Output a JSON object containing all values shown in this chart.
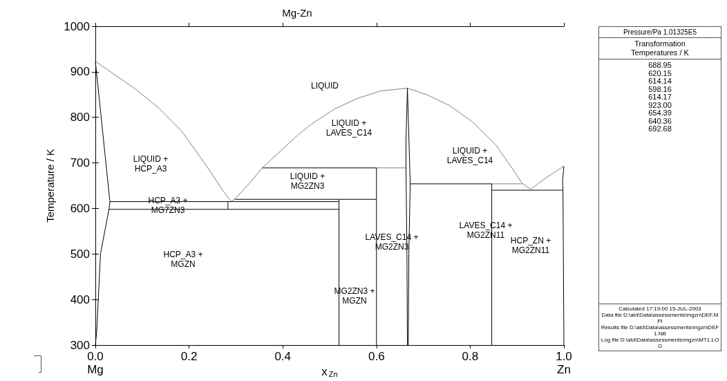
{
  "chart_data": [
    {
      "type": "line",
      "title": "Mg-Zn",
      "xlabel": "x$_{Zn}$",
      "ylabel": "Temperature / K",
      "marker": "none",
      "xlim": [
        0,
        1
      ],
      "ylim": [
        300,
        1000
      ],
      "xticks": [
        {
          "value": 0,
          "label": "0.0"
        },
        0.2,
        0.4,
        0.6,
        0.8,
        {
          "value": 1,
          "label": "1.0"
        }
      ],
      "yticks": [
        300,
        400,
        500,
        600,
        700,
        800,
        900,
        1000
      ],
      "series": [
        {
          "color": "#808080",
          "x": [
            0,
            0.087,
            0.136,
            0.184,
            0.234,
            0.273,
            0.29,
            0.298,
            0.332,
            0.357,
            0.431,
            0.461,
            0.51,
            0.56,
            0.609,
            0.666,
            0.707,
            0.756,
            0.805,
            0.855,
            0.889,
            0.911,
            0.929,
            0.963,
            0.997,
            1,
            null,
            0.6,
            0.663,
            null,
            0.846,
            0.911
          ],
          "values": [
            923,
            861,
            820,
            770,
            698,
            638,
            615,
            621,
            659,
            690,
            760,
            785,
            818,
            842,
            858,
            864,
            850,
            826,
            790,
            739,
            689,
            655,
            642,
            668,
            691,
            693,
            null,
            689,
            689,
            null,
            654,
            654
          ]
        },
        {
          "color": "#000000",
          "x": [
            0,
            0.031,
            0.029,
            0.022,
            0.011,
            0.003,
            0,
            null,
            0.666,
            0.663,
            0.663,
            0.665,
            0.666,
            null,
            0.666,
            0.669,
            0.672,
            0.669,
            0.668,
            null,
            0.031,
            0.52,
            null,
            0.029,
            0.52,
            null,
            0.283,
            0.283,
            null,
            0.298,
            0.6,
            null,
            0.52,
            0.52,
            null,
            0.357,
            0.6,
            null,
            0.6,
            0.6,
            null,
            0.672,
            0.846,
            null,
            0.846,
            0.846,
            null,
            0.846,
            0.997,
            null,
            1,
            0.997,
            0.998,
            1
          ],
          "values": [
            923,
            615,
            598,
            560,
            501,
            332,
            300,
            null,
            864,
            750,
            689,
            500,
            300,
            null,
            864,
            760,
            654,
            500,
            300,
            null,
            615,
            615,
            null,
            598,
            598,
            null,
            598,
            615,
            null,
            620,
            620,
            null,
            300,
            620,
            null,
            689,
            689,
            null,
            300,
            689,
            null,
            654,
            654,
            null,
            300,
            654,
            null,
            640,
            640,
            null,
            693,
            660,
            640,
            300
          ]
        }
      ],
      "annotations": [
        "LIQUID",
        "LIQUID +\nHCP_A3",
        "HCP_A3 +\nMG7ZN3",
        "LIQUID +\nMG2ZN3",
        "LIQUID +\nLAVES_C14",
        "LIQUID +\nLAVES_C14",
        "LAVES_C14 +\nMG2ZN3",
        "LAVES_C14 +\nMG2ZN11",
        "HCP_ZN +\nMG2ZN11",
        "HCP_A3 +\nMGZN",
        "MG2ZN3 +\nMGZN",
        "Mg",
        "Zn"
      ]
    },
    {
      "type": "other",
      "title": "Pressure/Pa  1.01325E5",
      "subtitle": "Transformation\nTemperatures / K",
      "annotations": [
        "688.95",
        "620.15",
        "614.14",
        "598.16",
        "614.17",
        "923.00",
        "654.39",
        "640.36",
        "692.68",
        "Calculated  17:19:00  15-JUL-2003",
        "Data file  D:\\atd\\Data\\assessments\\mgzn\\DEF.MPI",
        "Results file  D:\\atd\\Data\\assessments\\mgzn\\DEF1.NB",
        "Log file  D:\\atd\\Data\\assessments\\mgzn\\MT1.LOG"
      ]
    }
  ]
}
